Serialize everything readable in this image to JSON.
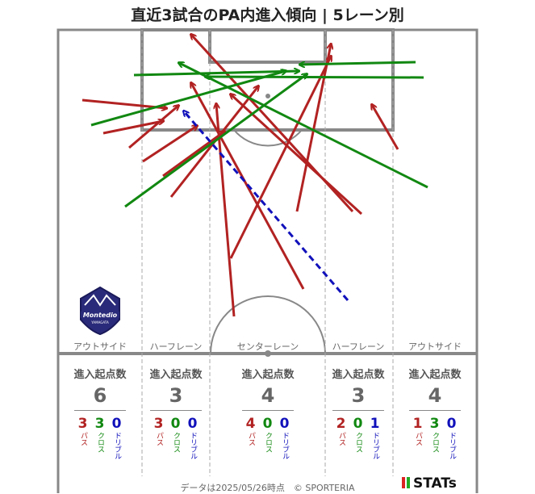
{
  "title": "直近3試合のPA内進入傾向 | 5レーン別",
  "lanes": [
    {
      "label": "アウトサイド",
      "heading": "進入起点数",
      "total": "6",
      "pass": "3",
      "cross": "3",
      "dribble": "0"
    },
    {
      "label": "ハーフレーン",
      "heading": "進入起点数",
      "total": "3",
      "pass": "3",
      "cross": "0",
      "dribble": "0"
    },
    {
      "label": "センターレーン",
      "heading": "進入起点数",
      "total": "4",
      "pass": "4",
      "cross": "0",
      "dribble": "0"
    },
    {
      "label": "ハーフレーン",
      "heading": "進入起点数",
      "total": "3",
      "pass": "2",
      "cross": "0",
      "dribble": "1"
    },
    {
      "label": "アウトサイド",
      "heading": "進入起点数",
      "total": "4",
      "pass": "1",
      "cross": "3",
      "dribble": "0"
    }
  ],
  "legend": {
    "pass": "パス",
    "cross": "クロス",
    "dribble": "ドリブル"
  },
  "colors": {
    "pass": "#b22222",
    "cross": "#118811",
    "dribble": "#1111bb",
    "pitch_line": "#888888",
    "lane_line": "#aaaaaa"
  },
  "arrows": [
    {
      "kind": "pass",
      "from": [
        102,
        124
      ],
      "to": [
        206,
        134
      ]
    },
    {
      "kind": "pass",
      "from": [
        128,
        165
      ],
      "to": [
        202,
        150
      ]
    },
    {
      "kind": "pass",
      "from": [
        160,
        183
      ],
      "to": [
        221,
        131
      ]
    },
    {
      "kind": "pass",
      "from": [
        177,
        200
      ],
      "to": [
        244,
        156
      ]
    },
    {
      "kind": "pass",
      "from": [
        202,
        218
      ],
      "to": [
        278,
        163
      ]
    },
    {
      "kind": "pass",
      "from": [
        212,
        244
      ],
      "to": [
        320,
        107
      ]
    },
    {
      "kind": "pass",
      "from": [
        290,
        392
      ],
      "to": [
        268,
        129
      ]
    },
    {
      "kind": "pass",
      "from": [
        286,
        320
      ],
      "to": [
        410,
        70
      ]
    },
    {
      "kind": "pass",
      "from": [
        368,
        262
      ],
      "to": [
        410,
        55
      ]
    },
    {
      "kind": "pass",
      "from": [
        376,
        358
      ],
      "to": [
        237,
        103
      ]
    },
    {
      "kind": "pass",
      "from": [
        448,
        265
      ],
      "to": [
        286,
        117
      ]
    },
    {
      "kind": "pass",
      "from": [
        437,
        262
      ],
      "to": [
        237,
        43
      ]
    },
    {
      "kind": "pass",
      "from": [
        493,
        185
      ],
      "to": [
        461,
        130
      ]
    },
    {
      "kind": "cross",
      "from": [
        113,
        155
      ],
      "to": [
        354,
        88
      ]
    },
    {
      "kind": "cross",
      "from": [
        155,
        256
      ],
      "to": [
        380,
        92
      ]
    },
    {
      "kind": "cross",
      "from": [
        166,
        93
      ],
      "to": [
        370,
        88
      ]
    },
    {
      "kind": "cross",
      "from": [
        530,
        232
      ],
      "to": [
        222,
        78
      ]
    },
    {
      "kind": "cross",
      "from": [
        515,
        77
      ],
      "to": [
        372,
        80
      ]
    },
    {
      "kind": "cross",
      "from": [
        525,
        96
      ],
      "to": [
        255,
        95
      ]
    },
    {
      "kind": "dribble",
      "from": [
        431,
        372
      ],
      "to": [
        228,
        138
      ]
    }
  ],
  "footer": "データは2025/05/26時点　© SPORTERIA",
  "brand": "STATs",
  "logo": {
    "name": "Montedio",
    "sub": "YAMAGATA"
  }
}
